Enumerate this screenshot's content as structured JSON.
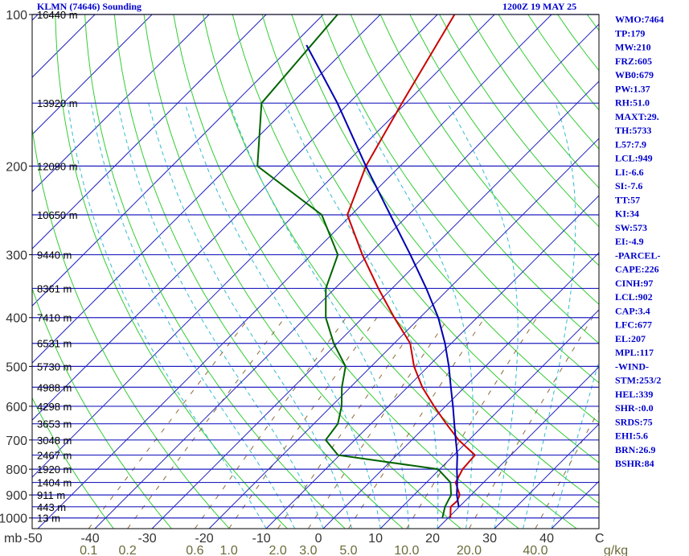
{
  "chart_data": {
    "type": "skewt",
    "title": "KLMN (74646) Sounding",
    "subtitle": "1200Z 19 MAY 25",
    "y_unit": "mb",
    "x_unit": "C",
    "log_y": true,
    "ylim": [
      1050,
      100
    ],
    "yticks": [
      100,
      200,
      300,
      400,
      500,
      600,
      700,
      800,
      900,
      1000
    ],
    "xlim": [
      -51,
      48.3
    ],
    "xticks": [
      -50,
      -40,
      -30,
      -20,
      -10,
      0,
      10,
      20,
      30,
      40
    ],
    "height_ticks": [
      {
        "value": 100,
        "label": "16440 m"
      },
      {
        "value": 150,
        "label": "13920 m"
      },
      {
        "value": 200,
        "label": "12090 m"
      },
      {
        "value": 250,
        "label": "10650 m"
      },
      {
        "value": 300,
        "label": "9440 m"
      },
      {
        "value": 350,
        "label": "8361 m"
      },
      {
        "value": 400,
        "label": "7410 m"
      },
      {
        "value": 450,
        "label": "6531 m"
      },
      {
        "value": 500,
        "label": "5730 m"
      },
      {
        "value": 550,
        "label": "4988 m"
      },
      {
        "value": 600,
        "label": "4298 m"
      },
      {
        "value": 650,
        "label": "3653 m"
      },
      {
        "value": 700,
        "label": "3048 m"
      },
      {
        "value": 750,
        "label": "2467 m"
      },
      {
        "value": 800,
        "label": "1920 m"
      },
      {
        "value": 850,
        "label": "1404 m"
      },
      {
        "value": 900,
        "label": "911 m"
      },
      {
        "value": 950,
        "label": "443 m"
      },
      {
        "value": 1000,
        "label": "13 m"
      }
    ],
    "mixing_ratio_ticks": [
      0.1,
      0.2,
      0.6,
      {
        "value": 1,
        "label": "1.0"
      },
      {
        "value": 2,
        "label": "2.0"
      },
      {
        "value": 3,
        "label": "3.0"
      },
      {
        "value": 5,
        "label": "5.0"
      },
      {
        "value": 10,
        "label": "10.0"
      },
      {
        "value": 20,
        "label": "20.0"
      },
      {
        "value": 40,
        "label": "40.0"
      }
    ],
    "mixing_ratio_unit": "g/kg",
    "series": [
      {
        "color": "#cc0000",
        "pressure": [
          1000,
          950,
          925,
          900,
          850,
          800,
          750,
          700,
          650,
          600,
          550,
          500,
          450,
          400,
          350,
          300,
          250,
          200,
          150,
          100
        ],
        "values": [
          20.4,
          18.5,
          18.6,
          18.0,
          15.1,
          14.0,
          13.7,
          8.2,
          3.2,
          -2.0,
          -7.4,
          -12.5,
          -17.2,
          -24.5,
          -32.4,
          -41.1,
          -50.7,
          -56.0,
          -60.7,
          -67.0
        ]
      },
      {
        "color": "#006400",
        "pressure": [
          1000,
          950,
          925,
          900,
          850,
          800,
          750,
          700,
          650,
          600,
          550,
          500,
          450,
          400,
          350,
          300,
          250,
          200,
          150,
          100
        ],
        "values": [
          19.0,
          17.5,
          17.0,
          16.5,
          14.2,
          9.7,
          -10.3,
          -15.1,
          -15.8,
          -18.2,
          -21.5,
          -24.5,
          -30.6,
          -36.5,
          -41.6,
          -45.4,
          -55.2,
          -75.0,
          -85.3,
          -87.5
        ]
      },
      {
        "color": "#0000b0",
        "pressure": [
          950,
          900,
          850,
          800,
          750,
          700,
          650,
          600,
          550,
          500,
          450,
          400,
          350,
          300,
          250,
          200,
          150,
          115
        ],
        "values": [
          19.9,
          17.5,
          15.4,
          13.0,
          10.6,
          7.7,
          4.6,
          1.3,
          -2.4,
          -6.4,
          -11.1,
          -16.8,
          -24.0,
          -32.7,
          -43.2,
          -56.0,
          -72.0,
          -87.6
        ]
      }
    ],
    "stats": [
      "WMO:7464",
      "TP:179",
      "MW:210",
      "FRZ:605",
      "WB0:679",
      "PW:1.37",
      "RH:51.0",
      "MAXT:29.",
      "TH:5733",
      "L57:7.9",
      "LCL:949",
      "LI:-6.6",
      "SI:-7.6",
      "TT:57",
      "KI:34",
      "SW:573",
      "EI:-4.9",
      "-PARCEL-",
      "CAPE:226",
      "CINH:97",
      "LCL:902",
      "CAP:3.4",
      "LFC:677",
      "EL:207",
      "MPL:117",
      "-WIND-",
      "STM:253/2",
      "HEL:339",
      "SHR-:0.0",
      "SRDS:75",
      "EHI:5.6",
      "BRN:26.9",
      "BSHR:84"
    ]
  }
}
